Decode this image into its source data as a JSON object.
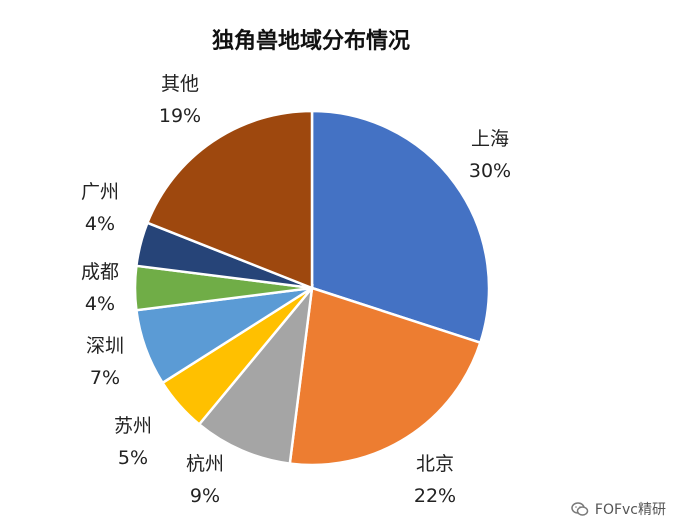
{
  "chart_data": {
    "type": "pie",
    "title": "独角兽地域分布情况",
    "slices": [
      {
        "label": "上海",
        "value": 30,
        "value_label": "30%",
        "color": "#4472C4"
      },
      {
        "label": "北京",
        "value": 22,
        "value_label": "22%",
        "color": "#ED7D31"
      },
      {
        "label": "杭州",
        "value": 9,
        "value_label": "9%",
        "color": "#A5A5A5"
      },
      {
        "label": "苏州",
        "value": 5,
        "value_label": "5%",
        "color": "#FFC000"
      },
      {
        "label": "深圳",
        "value": 7,
        "value_label": "7%",
        "color": "#5B9BD5"
      },
      {
        "label": "成都",
        "value": 4,
        "value_label": "4%",
        "color": "#70AD47"
      },
      {
        "label": "广州",
        "value": 4,
        "value_label": "4%",
        "color": "#264478"
      },
      {
        "label": "其他",
        "value": 19,
        "value_label": "19%",
        "color": "#9E480E"
      }
    ],
    "start_angle": "12 o'clock",
    "direction": "clockwise",
    "legend": "none"
  },
  "watermark": {
    "text": "FOFvc精研",
    "icon": "wechat-icon"
  }
}
